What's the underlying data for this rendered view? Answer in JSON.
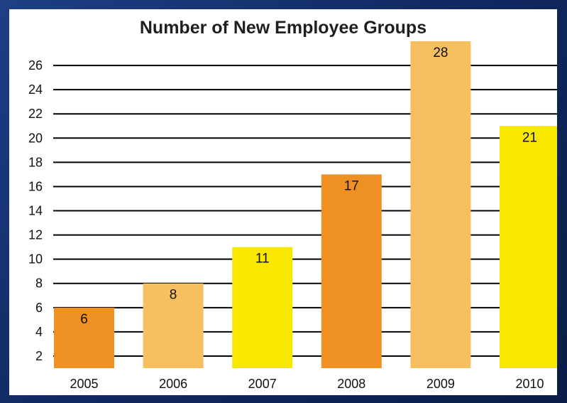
{
  "chart_data": {
    "type": "bar",
    "title": "Number of New Employee Groups",
    "xlabel": "",
    "ylabel": "",
    "categories": [
      "2005",
      "2006",
      "2007",
      "2008",
      "2009",
      "2010"
    ],
    "values": [
      6,
      8,
      11,
      17,
      28,
      21
    ],
    "bar_colors": [
      "#ee9122",
      "#f6bf5f",
      "#f8e800",
      "#ee9122",
      "#f6bf5f",
      "#f8e800"
    ],
    "yticks": [
      2,
      4,
      6,
      8,
      10,
      12,
      14,
      16,
      18,
      20,
      22,
      24,
      26
    ],
    "ylim": [
      1,
      28
    ],
    "grid": true,
    "legend": "none"
  }
}
